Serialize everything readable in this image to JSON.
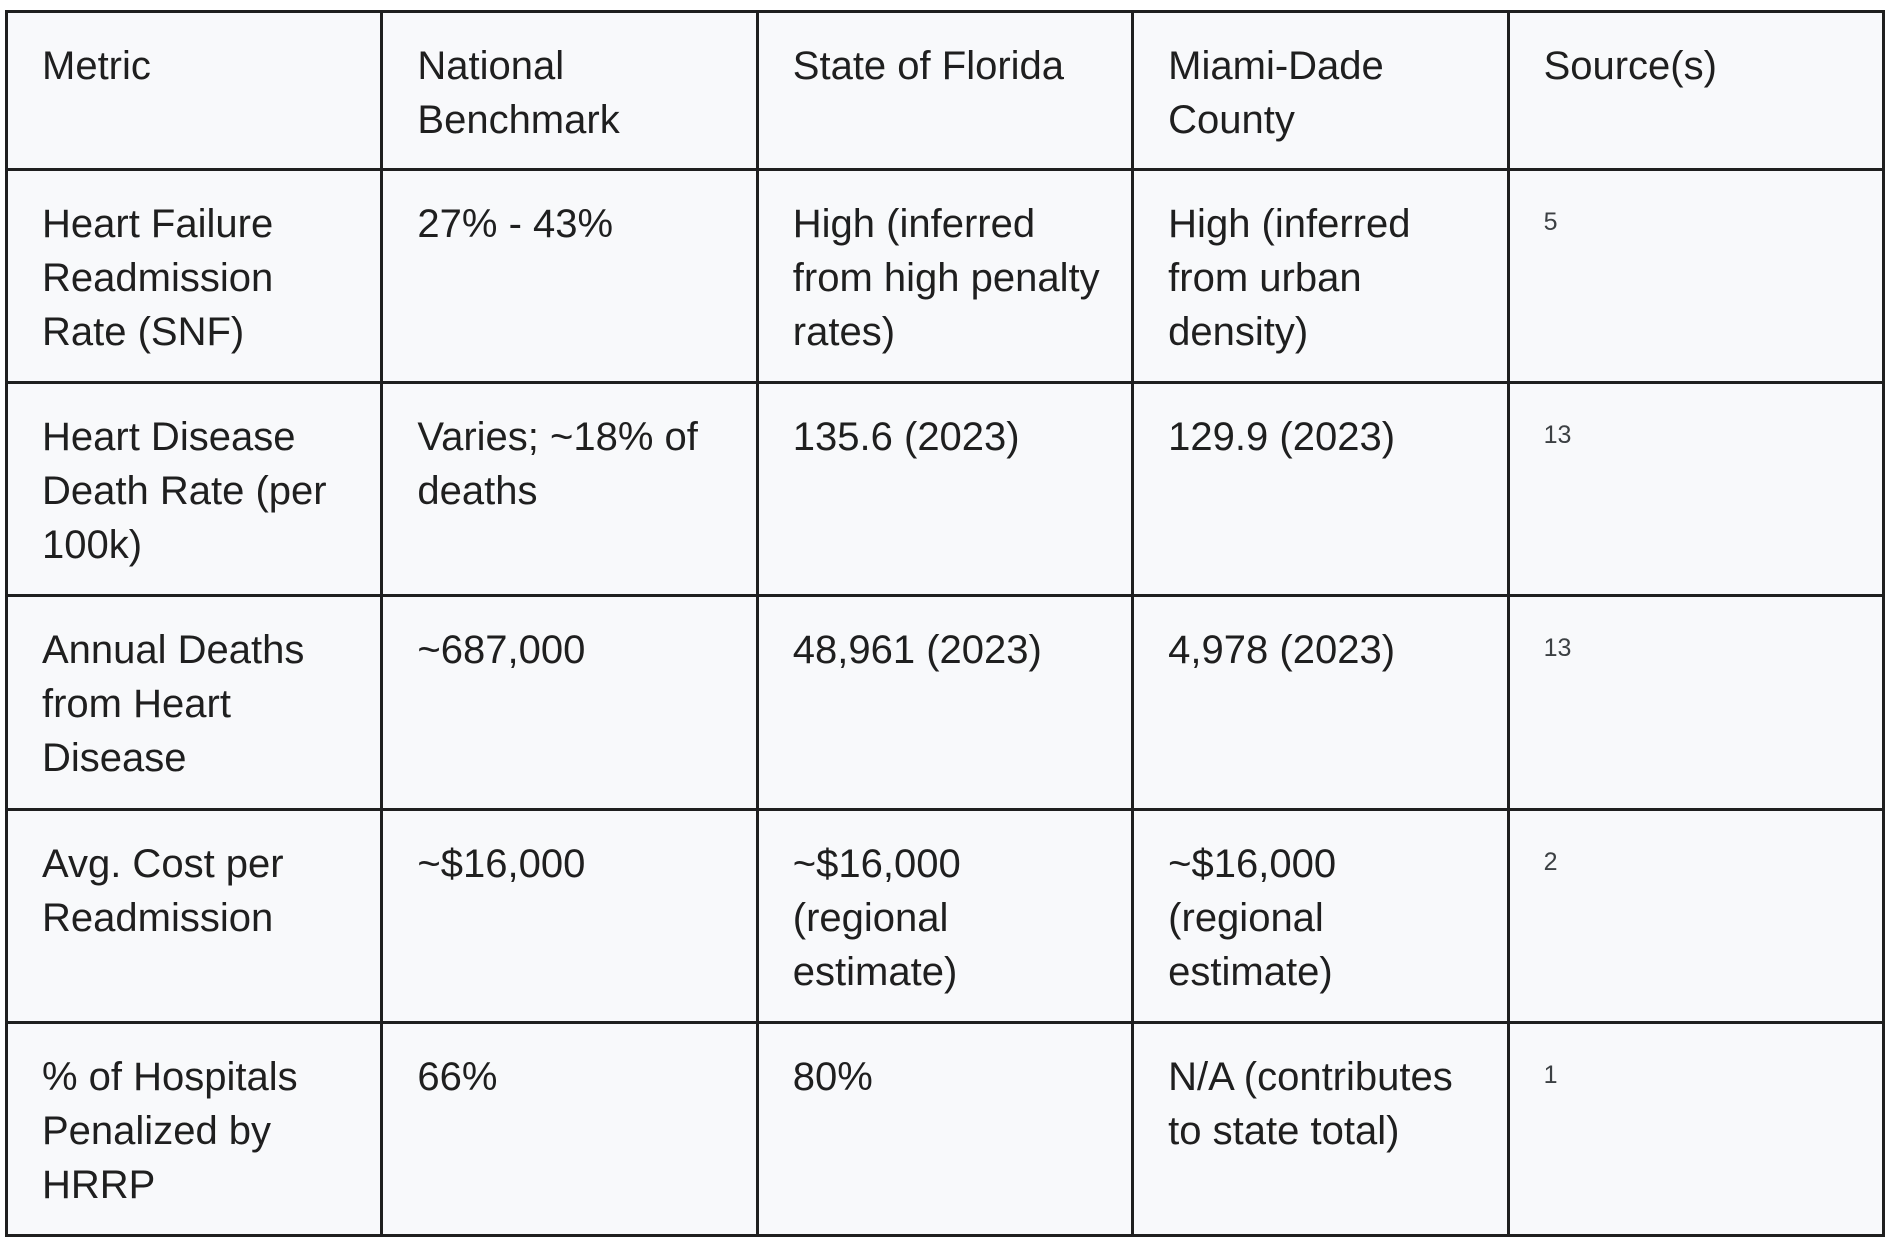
{
  "table": {
    "headers": [
      "Metric",
      "National Benchmark",
      "State of Florida",
      "Miami-Dade County",
      "Source(s)"
    ],
    "rows": [
      {
        "metric": "Heart Failure Readmission Rate (SNF)",
        "national": "27% - 43%",
        "florida": "High (inferred from high penalty rates)",
        "miami_dade": "High (inferred from urban density)",
        "sources": "5"
      },
      {
        "metric": "Heart Disease Death Rate (per 100k)",
        "national": "Varies; ~18% of deaths",
        "florida": "135.6 (2023)",
        "miami_dade": "129.9 (2023)",
        "sources": "13"
      },
      {
        "metric": "Annual Deaths from Heart Disease",
        "national": "~687,000",
        "florida": "48,961 (2023)",
        "miami_dade": "4,978 (2023)",
        "sources": "13"
      },
      {
        "metric": "Avg. Cost per Readmission",
        "national": "~$16,000",
        "florida": "~$16,000 (regional estimate)",
        "miami_dade": "~$16,000 (regional estimate)",
        "sources": "2"
      },
      {
        "metric": "% of Hospitals Penalized by HRRP",
        "national": "66%",
        "florida": "80%",
        "miami_dade": "N/A (contributes to state total)",
        "sources": "1"
      }
    ]
  }
}
